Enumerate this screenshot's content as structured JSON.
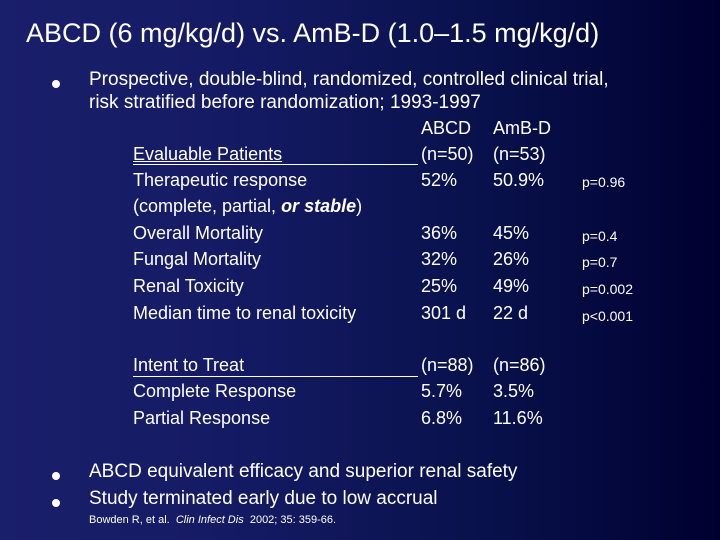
{
  "title": "ABCD (6 mg/kg/d) vs. AmB-D (1.0–1.5 mg/kg/d)",
  "bullet_glyph": "l",
  "bullets": {
    "intro_line1": "Prospective, double-blind, randomized, controlled clinical trial,",
    "intro_line2": "risk stratified before randomization; 1993-1997",
    "conclusion1": "ABCD equivalent efficacy and superior renal safety",
    "conclusion2": "Study terminated early due to low accrual"
  },
  "table": {
    "col_headers": [
      "ABCD",
      "AmB-D"
    ],
    "evaluable": {
      "heading": "Evaluable Patients",
      "n": [
        "(n=50)",
        "(n=53)"
      ],
      "rows": [
        {
          "label": "Therapeutic response",
          "abcd": "52%",
          "ambd": "50.9%",
          "p": "p=0.96"
        },
        {
          "label_pre": "(complete, partial, ",
          "label_em": "or stable",
          "label_post": ")"
        },
        {
          "label": "Overall Mortality",
          "abcd": "36%",
          "ambd": "45%",
          "p": "p=0.4"
        },
        {
          "label": "Fungal Mortality",
          "abcd": "32%",
          "ambd": "26%",
          "p": "p=0.7"
        },
        {
          "label": "Renal Toxicity",
          "abcd": "25%",
          "ambd": "49%",
          "p": "p=0.002"
        },
        {
          "label": "Median time to renal toxicity",
          "abcd": "301 d",
          "ambd": "22 d",
          "p": "p<0.001"
        }
      ]
    },
    "itt": {
      "heading": "Intent to Treat",
      "n": [
        "(n=88)",
        "(n=86)"
      ],
      "rows": [
        {
          "label": "Complete Response",
          "abcd": "5.7%",
          "ambd": "3.5%"
        },
        {
          "label": "Partial Response",
          "abcd": "6.8%",
          "ambd": "11.6%"
        }
      ]
    }
  },
  "citation": {
    "authors": "Bowden R, et al.",
    "journal": "Clin Infect Dis",
    "ref": "2002; 35: 359-66."
  }
}
